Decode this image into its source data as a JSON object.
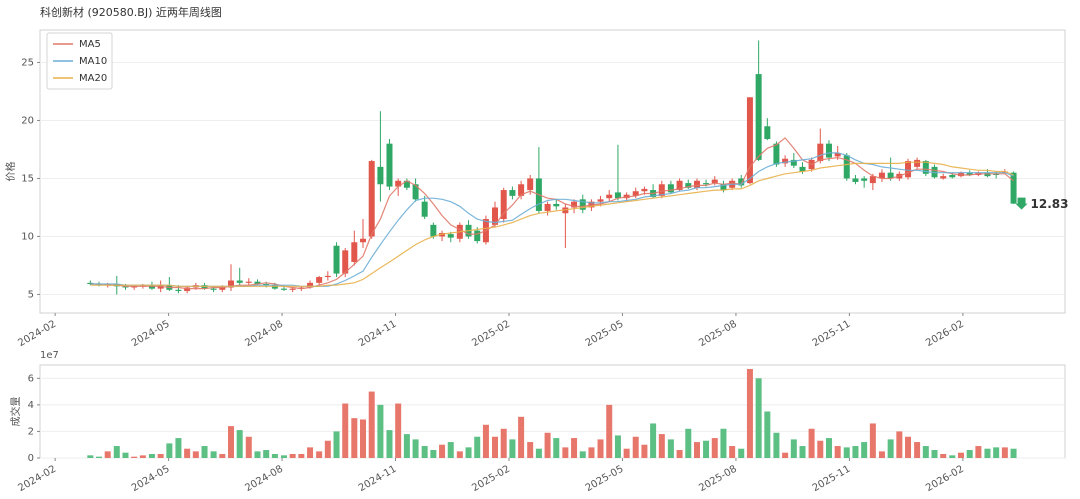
{
  "chart_data": {
    "type": "candlestick",
    "title": "科创新材 (920580.BJ) 近两年周线图",
    "ylabel": "价格",
    "xlim": [
      -0.4,
      26.7
    ],
    "xticks": [
      {
        "value": 0,
        "label": "2024-02"
      },
      {
        "value": 3,
        "label": "2024-05"
      },
      {
        "value": 6,
        "label": "2024-08"
      },
      {
        "value": 9,
        "label": "2024-11"
      },
      {
        "value": 12,
        "label": "2025-02"
      },
      {
        "value": 15,
        "label": "2025-05"
      },
      {
        "value": 18,
        "label": "2025-08"
      },
      {
        "value": 21,
        "label": "2025-11"
      },
      {
        "value": 24,
        "label": "2026-02"
      }
    ],
    "ylim": [
      3.4,
      27.8
    ],
    "yticks": [
      5,
      10,
      15,
      20,
      25
    ],
    "grid": true,
    "legend": "upper left",
    "up_color": "#e2574c",
    "down_color": "#2fa866",
    "x": [
      0.93,
      1.16,
      1.39,
      1.63,
      1.86,
      2.09,
      2.32,
      2.56,
      2.79,
      3.02,
      3.26,
      3.49,
      3.72,
      3.95,
      4.19,
      4.42,
      4.65,
      4.88,
      5.12,
      5.35,
      5.58,
      5.81,
      6.05,
      6.28,
      6.51,
      6.74,
      6.98,
      7.21,
      7.44,
      7.67,
      7.91,
      8.14,
      8.37,
      8.6,
      8.84,
      9.07,
      9.3,
      9.53,
      9.77,
      10.0,
      10.23,
      10.46,
      10.7,
      10.93,
      11.16,
      11.39,
      11.63,
      11.86,
      12.09,
      12.32,
      12.56,
      12.79,
      13.02,
      13.25,
      13.49,
      13.72,
      13.95,
      14.18,
      14.42,
      14.65,
      14.88,
      15.11,
      15.35,
      15.58,
      15.81,
      16.04,
      16.28,
      16.51,
      16.74,
      16.97,
      17.21,
      17.44,
      17.67,
      17.9,
      18.14,
      18.37,
      18.6,
      18.83,
      19.07,
      19.3,
      19.53,
      19.76,
      20.0,
      20.23,
      20.46,
      20.69,
      20.93,
      21.16,
      21.39,
      21.62,
      21.86,
      22.09,
      22.32,
      22.55,
      22.79,
      23.02,
      23.25,
      23.48,
      23.72,
      23.95,
      24.18,
      24.41,
      24.65,
      24.88,
      25.11,
      25.34
    ],
    "ohlc": [
      [
        6.0,
        6.2,
        5.8,
        5.9
      ],
      [
        5.9,
        6.1,
        5.7,
        5.8
      ],
      [
        5.8,
        6.0,
        5.6,
        5.9
      ],
      [
        5.9,
        6.6,
        5.0,
        5.7
      ],
      [
        5.7,
        5.9,
        5.4,
        5.6
      ],
      [
        5.6,
        5.8,
        5.4,
        5.7
      ],
      [
        5.7,
        5.9,
        5.5,
        5.8
      ],
      [
        5.8,
        6.1,
        5.4,
        5.5
      ],
      [
        5.5,
        6.2,
        5.2,
        5.8
      ],
      [
        5.8,
        6.5,
        5.3,
        5.4
      ],
      [
        5.4,
        5.8,
        5.1,
        5.3
      ],
      [
        5.3,
        5.7,
        5.1,
        5.6
      ],
      [
        5.6,
        6.0,
        5.4,
        5.8
      ],
      [
        5.8,
        6.0,
        5.4,
        5.5
      ],
      [
        5.5,
        5.7,
        5.2,
        5.4
      ],
      [
        5.4,
        5.8,
        5.2,
        5.6
      ],
      [
        5.6,
        7.6,
        5.3,
        6.2
      ],
      [
        6.2,
        7.3,
        5.8,
        6.0
      ],
      [
        6.0,
        6.4,
        5.8,
        6.1
      ],
      [
        6.1,
        6.3,
        5.8,
        5.9
      ],
      [
        5.9,
        6.1,
        5.6,
        5.8
      ],
      [
        5.8,
        6.0,
        5.4,
        5.5
      ],
      [
        5.5,
        5.7,
        5.3,
        5.4
      ],
      [
        5.4,
        5.6,
        5.2,
        5.5
      ],
      [
        5.5,
        5.7,
        5.3,
        5.6
      ],
      [
        5.6,
        6.2,
        5.5,
        6.0
      ],
      [
        6.0,
        6.6,
        5.8,
        6.5
      ],
      [
        6.5,
        7.0,
        6.2,
        6.6
      ],
      [
        9.2,
        9.5,
        6.5,
        6.8
      ],
      [
        6.8,
        9.0,
        6.5,
        8.8
      ],
      [
        7.8,
        10.5,
        7.5,
        9.5
      ],
      [
        9.5,
        11.5,
        9.0,
        9.8
      ],
      [
        10.0,
        16.6,
        9.8,
        16.5
      ],
      [
        16.0,
        20.8,
        13.0,
        14.5
      ],
      [
        18.0,
        18.4,
        14.0,
        14.3
      ],
      [
        14.3,
        15.0,
        13.5,
        14.8
      ],
      [
        14.8,
        15.0,
        14.0,
        14.2
      ],
      [
        14.5,
        15.0,
        13.0,
        13.2
      ],
      [
        13.0,
        13.5,
        11.5,
        11.7
      ],
      [
        11.0,
        11.2,
        9.8,
        10.0
      ],
      [
        10.0,
        10.5,
        9.6,
        10.3
      ],
      [
        10.2,
        10.4,
        9.5,
        9.9
      ],
      [
        9.8,
        11.2,
        9.5,
        11.0
      ],
      [
        11.0,
        11.4,
        9.8,
        10.0
      ],
      [
        10.5,
        10.8,
        9.4,
        9.6
      ],
      [
        9.5,
        11.8,
        9.3,
        11.5
      ],
      [
        11.0,
        13.0,
        10.8,
        12.5
      ],
      [
        11.5,
        14.2,
        11.2,
        14.0
      ],
      [
        14.0,
        14.3,
        13.2,
        13.5
      ],
      [
        13.5,
        14.8,
        13.2,
        14.5
      ],
      [
        14.0,
        15.3,
        13.6,
        15.0
      ],
      [
        15.0,
        17.7,
        12.0,
        12.2
      ],
      [
        12.2,
        13.0,
        11.8,
        12.8
      ],
      [
        12.8,
        13.2,
        12.3,
        12.6
      ],
      [
        12.0,
        12.8,
        9.0,
        12.5
      ],
      [
        12.5,
        13.2,
        12.0,
        13.0
      ],
      [
        13.2,
        13.6,
        12.0,
        12.3
      ],
      [
        12.5,
        13.2,
        12.2,
        13.0
      ],
      [
        13.0,
        13.5,
        12.6,
        13.2
      ],
      [
        13.3,
        14.0,
        13.0,
        13.6
      ],
      [
        13.8,
        17.9,
        13.1,
        13.3
      ],
      [
        13.3,
        13.8,
        13.0,
        13.6
      ],
      [
        13.5,
        14.2,
        13.3,
        13.9
      ],
      [
        13.9,
        14.3,
        13.6,
        14.1
      ],
      [
        14.0,
        14.5,
        13.3,
        13.4
      ],
      [
        13.5,
        14.8,
        13.3,
        14.5
      ],
      [
        14.5,
        14.8,
        13.7,
        13.8
      ],
      [
        14.0,
        15.0,
        13.9,
        14.8
      ],
      [
        14.6,
        14.9,
        14.1,
        14.2
      ],
      [
        14.2,
        15.0,
        14.0,
        14.8
      ],
      [
        14.6,
        14.9,
        14.3,
        14.5
      ],
      [
        14.6,
        15.2,
        14.4,
        14.9
      ],
      [
        14.5,
        14.8,
        13.8,
        14.0
      ],
      [
        14.2,
        15.0,
        14.0,
        14.8
      ],
      [
        15.0,
        15.3,
        14.2,
        14.4
      ],
      [
        14.6,
        22.0,
        14.5,
        22.0
      ],
      [
        24.0,
        26.9,
        16.5,
        16.6
      ],
      [
        19.5,
        20.2,
        18.3,
        18.4
      ],
      [
        18.0,
        18.2,
        16.0,
        16.2
      ],
      [
        16.3,
        17.0,
        16.0,
        16.7
      ],
      [
        16.6,
        17.2,
        15.9,
        16.1
      ],
      [
        16.0,
        16.4,
        15.4,
        15.6
      ],
      [
        15.8,
        16.8,
        15.6,
        16.6
      ],
      [
        16.5,
        19.3,
        16.3,
        18.0
      ],
      [
        18.0,
        18.3,
        16.5,
        16.8
      ],
      [
        16.9,
        17.8,
        16.6,
        17.2
      ],
      [
        17.0,
        17.2,
        14.8,
        15.0
      ],
      [
        15.0,
        15.3,
        14.5,
        14.7
      ],
      [
        15.0,
        15.2,
        14.2,
        14.8
      ],
      [
        14.6,
        15.4,
        14.0,
        15.2
      ],
      [
        15.0,
        15.8,
        14.7,
        15.5
      ],
      [
        15.5,
        16.8,
        14.8,
        15.0
      ],
      [
        15.0,
        15.6,
        14.8,
        15.4
      ],
      [
        15.1,
        16.7,
        14.9,
        16.5
      ],
      [
        16.0,
        16.8,
        15.8,
        16.6
      ],
      [
        16.5,
        16.6,
        15.2,
        15.4
      ],
      [
        16.0,
        16.2,
        15.0,
        15.1
      ],
      [
        15.0,
        15.4,
        14.9,
        15.2
      ],
      [
        15.3,
        15.5,
        15.0,
        15.1
      ],
      [
        15.2,
        15.6,
        15.1,
        15.5
      ],
      [
        15.5,
        15.7,
        15.2,
        15.3
      ],
      [
        15.3,
        15.6,
        15.2,
        15.5
      ],
      [
        15.5,
        15.8,
        15.1,
        15.2
      ],
      [
        15.4,
        15.6,
        15.0,
        15.3
      ],
      [
        15.5,
        15.8,
        15.4,
        15.6
      ],
      [
        15.5,
        15.6,
        12.8,
        12.83
      ]
    ],
    "series": [
      {
        "name": "MA5",
        "color": "#e07868",
        "values": [
          5.9,
          5.9,
          5.8,
          5.8,
          5.7,
          5.7,
          5.7,
          5.7,
          5.7,
          5.6,
          5.6,
          5.5,
          5.5,
          5.5,
          5.6,
          5.6,
          5.7,
          5.8,
          5.8,
          5.9,
          6.0,
          5.9,
          5.7,
          5.6,
          5.5,
          5.6,
          5.8,
          6.0,
          6.3,
          6.9,
          7.6,
          8.3,
          10.2,
          11.5,
          13.5,
          14.3,
          14.8,
          14.4,
          13.7,
          12.8,
          11.8,
          11.0,
          10.6,
          10.2,
          10.2,
          10.5,
          11.0,
          12.0,
          12.7,
          13.6,
          13.9,
          13.6,
          13.3,
          13.2,
          12.8,
          12.6,
          12.6,
          12.7,
          12.8,
          13.0,
          13.3,
          13.4,
          13.5,
          13.7,
          13.7,
          13.9,
          14.0,
          14.1,
          14.3,
          14.4,
          14.4,
          14.6,
          14.5,
          14.6,
          14.5,
          16.0,
          16.9,
          17.6,
          17.9,
          18.5,
          17.6,
          16.6,
          16.2,
          16.6,
          16.7,
          16.8,
          16.6,
          16.3,
          15.7,
          15.2,
          15.0,
          15.0,
          15.2,
          15.5,
          15.8,
          15.8,
          15.7,
          15.6,
          15.4,
          15.3,
          15.3,
          15.4,
          15.4,
          15.4,
          15.4,
          14.8
        ]
      },
      {
        "name": "MA10",
        "color": "#6aaed6",
        "values": [
          5.9,
          5.9,
          5.9,
          5.9,
          5.8,
          5.8,
          5.8,
          5.8,
          5.8,
          5.8,
          5.7,
          5.7,
          5.7,
          5.7,
          5.7,
          5.7,
          5.7,
          5.7,
          5.7,
          5.8,
          5.8,
          5.8,
          5.8,
          5.8,
          5.7,
          5.7,
          5.7,
          5.7,
          5.9,
          6.2,
          6.6,
          7.0,
          8.2,
          9.3,
          10.4,
          11.4,
          12.3,
          13.1,
          13.3,
          13.3,
          13.2,
          13.0,
          12.6,
          12.0,
          11.5,
          11.3,
          11.2,
          11.3,
          11.4,
          11.9,
          12.4,
          12.8,
          13.1,
          13.2,
          13.2,
          13.1,
          13.0,
          12.9,
          12.9,
          13.0,
          13.0,
          13.1,
          13.2,
          13.4,
          13.5,
          13.6,
          13.7,
          13.9,
          14.0,
          14.2,
          14.2,
          14.3,
          14.4,
          14.5,
          14.5,
          15.0,
          15.6,
          16.0,
          16.3,
          16.4,
          16.5,
          16.6,
          16.7,
          17.0,
          17.2,
          17.2,
          17.0,
          16.6,
          16.3,
          16.2,
          16.0,
          15.9,
          15.8,
          15.7,
          15.7,
          15.6,
          15.5,
          15.5,
          15.5,
          15.5,
          15.5,
          15.5,
          15.5,
          15.5,
          15.5,
          15.2
        ]
      },
      {
        "name": "MA20",
        "color": "#e8b04a",
        "values": [
          5.8,
          5.8,
          5.8,
          5.8,
          5.8,
          5.8,
          5.8,
          5.8,
          5.8,
          5.8,
          5.7,
          5.7,
          5.7,
          5.7,
          5.7,
          5.7,
          5.7,
          5.7,
          5.7,
          5.7,
          5.7,
          5.7,
          5.7,
          5.7,
          5.7,
          5.7,
          5.7,
          5.8,
          5.8,
          5.9,
          6.0,
          6.3,
          6.8,
          7.3,
          7.8,
          8.3,
          8.8,
          9.3,
          9.7,
          10.0,
          10.2,
          10.3,
          10.4,
          10.5,
          10.6,
          10.7,
          10.8,
          11.0,
          11.2,
          11.5,
          11.8,
          12.0,
          12.1,
          12.2,
          12.3,
          12.4,
          12.5,
          12.6,
          12.7,
          12.8,
          12.9,
          13.0,
          13.1,
          13.2,
          13.3,
          13.4,
          13.5,
          13.6,
          13.7,
          13.8,
          13.9,
          14.0,
          14.0,
          14.1,
          14.1,
          14.4,
          14.8,
          15.0,
          15.2,
          15.4,
          15.5,
          15.6,
          15.7,
          15.9,
          16.0,
          16.1,
          16.2,
          16.3,
          16.3,
          16.3,
          16.3,
          16.3,
          16.3,
          16.4,
          16.4,
          16.4,
          16.3,
          16.2,
          16.0,
          15.9,
          15.8,
          15.7,
          15.7,
          15.6,
          15.6,
          15.3
        ]
      }
    ],
    "volume": {
      "ylabel": "成交量",
      "offset_label": "1e7",
      "up_color": "#e8776b",
      "down_color": "#5cbf84",
      "ylim": [
        0,
        70000000
      ],
      "yticks": [
        {
          "value": 0,
          "label": "0"
        },
        {
          "value": 20000000,
          "label": "2"
        },
        {
          "value": 40000000,
          "label": "4"
        },
        {
          "value": 60000000,
          "label": "6"
        }
      ],
      "values": [
        2000000.0,
        1000000.0,
        5000000.0,
        9000000.0,
        4000000.0,
        1000000.0,
        2000000.0,
        3000000.0,
        3000000.0,
        11000000.0,
        15000000.0,
        7000000.0,
        5000000.0,
        9000000.0,
        5000000.0,
        3000000.0,
        24000000.0,
        21000000.0,
        16000000.0,
        5000000.0,
        6000000.0,
        3000000.0,
        2000000.0,
        3000000.0,
        3000000.0,
        8000000.0,
        5000000.0,
        13000000.0,
        20000000.0,
        41000000.0,
        30000000.0,
        29000000.0,
        50000000.0,
        40000000.0,
        21000000.0,
        41000000.0,
        18000000.0,
        14000000.0,
        9000000.0,
        6000000.0,
        10000000.0,
        12000000.0,
        5000000.0,
        8000000.0,
        16000000.0,
        25000000.0,
        16000000.0,
        22000000.0,
        14000000.0,
        31000000.0,
        12000000.0,
        7000000.0,
        19000000.0,
        15000000.0,
        8000000.0,
        15000000.0,
        5000000.0,
        8000000.0,
        14000000.0,
        40000000.0,
        17000000.0,
        7000000.0,
        16000000.0,
        10000000.0,
        26000000.0,
        18000000.0,
        14000000.0,
        6000000.0,
        22000000.0,
        12000000.0,
        13000000.0,
        15000000.0,
        22000000.0,
        9000000.0,
        7000000.0,
        67000000.0,
        60000000.0,
        35000000.0,
        19000000.0,
        4000000.0,
        14000000.0,
        9000000.0,
        22000000.0,
        13000000.0,
        15000000.0,
        9000000.0,
        8000000.0,
        9000000.0,
        12000000.0,
        26000000.0,
        5000000.0,
        14000000.0,
        20000000.0,
        16000000.0,
        12000000.0,
        9000000.0,
        6000000.0,
        3000000.0,
        2000000.0,
        4000000.0,
        6000000.0,
        9000000.0,
        7000000.0,
        8000000.0,
        8000000.0,
        7000000.0
      ]
    }
  }
}
